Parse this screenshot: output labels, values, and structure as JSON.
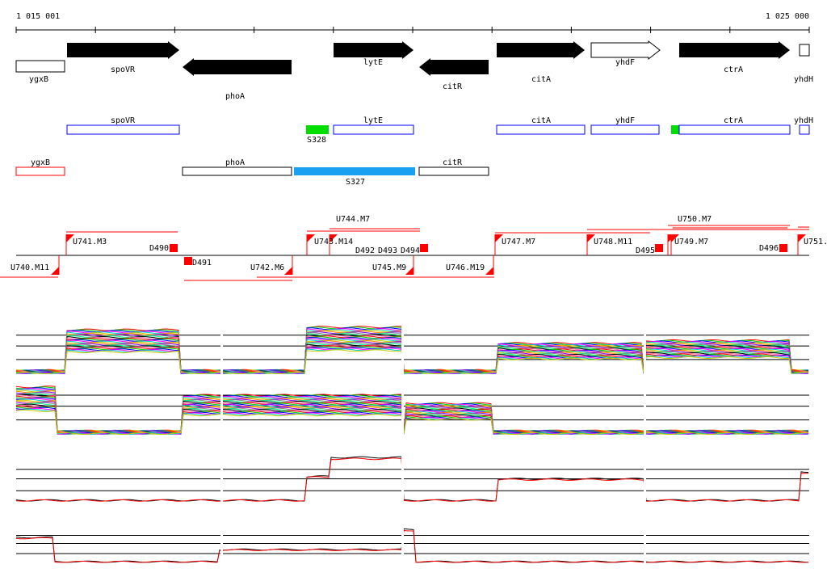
{
  "ruler": {
    "start_label": "1 015 001",
    "end_label": "1 025 000"
  },
  "genes": [
    {
      "name": "ygxB",
      "strand": "-",
      "style": "open"
    },
    {
      "name": "spoVR",
      "strand": "+",
      "style": "filled"
    },
    {
      "name": "phoA",
      "strand": "-",
      "style": "filled"
    },
    {
      "name": "lytE",
      "strand": "+",
      "style": "filled"
    },
    {
      "name": "citR",
      "strand": "-",
      "style": "filled"
    },
    {
      "name": "citA",
      "strand": "+",
      "style": "filled"
    },
    {
      "name": "yhdF",
      "strand": "+",
      "style": "open"
    },
    {
      "name": "ctrA",
      "strand": "+",
      "style": "filled"
    },
    {
      "name": "yhdH",
      "strand": "+",
      "style": "open"
    }
  ],
  "forward_features": [
    "spoVR",
    "S328",
    "lytE",
    "citA",
    "yhdF",
    "ctrA",
    "yhdH"
  ],
  "reverse_features": [
    "ygxB",
    "phoA",
    "S327",
    "citR"
  ],
  "segments_upper": [
    "U741.M3",
    "D490",
    "U743.M14",
    "U744.M7",
    "D492",
    "D493",
    "D494",
    "U747.M7",
    "U748.M11",
    "D495",
    "U749.M7",
    "U750.M7",
    "D496",
    "U751."
  ],
  "segments_lower": [
    "U740.M11",
    "D491",
    "U742.M6",
    "U745.M9",
    "U746.M19"
  ],
  "colors": {
    "feature": "#0000ff",
    "ncRNA": "#00cc00",
    "S327": "#1aa0f0",
    "segment": "#ff0000"
  }
}
